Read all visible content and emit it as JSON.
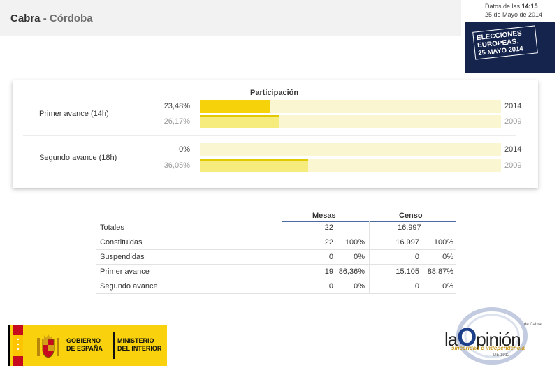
{
  "header": {
    "municipality": "Cabra",
    "separator": " - ",
    "province": "Córdoba",
    "data_label": "Datos de las ",
    "time": "14:15",
    "date": "25 de Mayo de 2014"
  },
  "elections_logo": {
    "line1": "ELECCIONES",
    "line2": "EUROPEAS.",
    "line3": "25 MAYO 2014"
  },
  "participation": {
    "title": "Participación",
    "groups": [
      {
        "label": "Primer avance (14h)",
        "current": {
          "pct_text": "23,48%",
          "value": 23.48,
          "year": "2014"
        },
        "previous": {
          "pct_text": "26,17%",
          "value": 26.17,
          "year": "2009"
        }
      },
      {
        "label": "Segundo avance (18h)",
        "current": {
          "pct_text": "0%",
          "value": 0,
          "year": "2014"
        },
        "previous": {
          "pct_text": "36,05%",
          "value": 36.05,
          "year": "2009"
        }
      }
    ]
  },
  "stats": {
    "mesas_header": "Mesas",
    "censo_header": "Censo",
    "rows": [
      {
        "label": "Totales",
        "mesas": "22",
        "mesas_pct": "",
        "censo": "16.997",
        "censo_pct": ""
      },
      {
        "label": "Constituidas",
        "mesas": "22",
        "mesas_pct": "100%",
        "censo": "16.997",
        "censo_pct": "100%"
      },
      {
        "label": "Suspendidas",
        "mesas": "0",
        "mesas_pct": "0%",
        "censo": "0",
        "censo_pct": "0%"
      },
      {
        "label": "Primer avance",
        "mesas": "19",
        "mesas_pct": "86,36%",
        "censo": "15.105",
        "censo_pct": "88,87%"
      },
      {
        "label": "Segundo avance",
        "mesas": "0",
        "mesas_pct": "0%",
        "censo": "0",
        "censo_pct": "0%"
      }
    ]
  },
  "gov_logo": {
    "left_line1": "GOBIERNO",
    "left_line2": "DE ESPAÑA",
    "right_line1": "MINISTERIO",
    "right_line2": "DEL INTERIOR"
  },
  "opinion_logo": {
    "word_start": "la",
    "word_big": "O",
    "word_end": "pinión",
    "de": "de Cabra",
    "slogan": "sinceridad e independencia",
    "since": "DE 1912"
  },
  "colors": {
    "bar_current": "#f6d20a",
    "bar_previous": "#f6eb7d",
    "track": "#fbf6d2",
    "elections_bg": "#15244d"
  }
}
